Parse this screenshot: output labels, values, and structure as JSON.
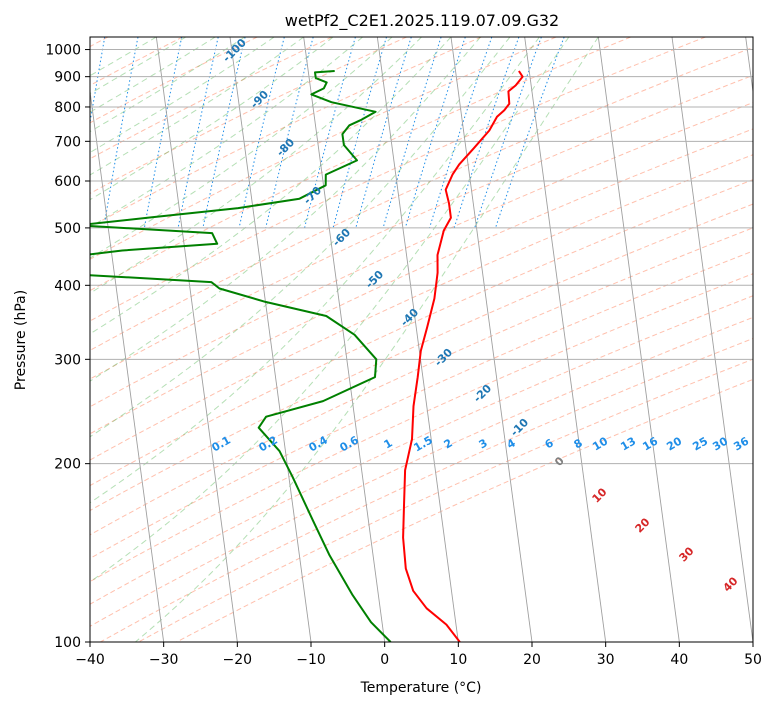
{
  "chart_data": {
    "type": "line",
    "title": "wetPf2_C2E1.2025.119.07.09.G32",
    "xlabel": "Temperature (°C)",
    "ylabel": "Pressure (hPa)",
    "xlim": [
      -40,
      50
    ],
    "ylim": [
      1050,
      100
    ],
    "y_scale": "log",
    "grid": true,
    "x_ticks": [
      "−40",
      "−30",
      "−20",
      "−10",
      "0",
      "10",
      "20",
      "30",
      "40",
      "50"
    ],
    "y_ticks": [
      "100",
      "200",
      "300",
      "400",
      "500",
      "600",
      "700",
      "800",
      "900",
      "1000"
    ],
    "series": [
      {
        "kind": "temperature",
        "color": "#ff0000",
        "points": [
          [
            28.6,
            920
          ],
          [
            29.0,
            900
          ],
          [
            27.9,
            870
          ],
          [
            26.8,
            850
          ],
          [
            26.7,
            810
          ],
          [
            25.9,
            790
          ],
          [
            24.8,
            770
          ],
          [
            23.5,
            730
          ],
          [
            21.0,
            680
          ],
          [
            18.8,
            640
          ],
          [
            17.7,
            615
          ],
          [
            16.5,
            580
          ],
          [
            16.7,
            550
          ],
          [
            16.7,
            520
          ],
          [
            15.5,
            495
          ],
          [
            14.8,
            470
          ],
          [
            14.2,
            450
          ],
          [
            13.9,
            420
          ],
          [
            13.0,
            380
          ],
          [
            11.5,
            340
          ],
          [
            10.2,
            310
          ],
          [
            9.3,
            280
          ],
          [
            8.2,
            250
          ],
          [
            7.4,
            220
          ],
          [
            5.9,
            195
          ],
          [
            5.1,
            170
          ],
          [
            4.4,
            150
          ],
          [
            4.2,
            133
          ],
          [
            4.8,
            122
          ],
          [
            6.3,
            114
          ],
          [
            8.7,
            107
          ],
          [
            10.2,
            100
          ]
        ]
      },
      {
        "kind": "dewpoint",
        "color": "#008000",
        "points": [
          [
            3.6,
            920
          ],
          [
            0.9,
            915
          ],
          [
            0.9,
            895
          ],
          [
            2.3,
            880
          ],
          [
            1.8,
            860
          ],
          [
            0.0,
            840
          ],
          [
            2.6,
            815
          ],
          [
            8.4,
            785
          ],
          [
            6.2,
            760
          ],
          [
            4.6,
            745
          ],
          [
            3.5,
            720
          ],
          [
            3.5,
            690
          ],
          [
            5.0,
            650
          ],
          [
            0.5,
            615
          ],
          [
            0.3,
            590
          ],
          [
            -3.5,
            560
          ],
          [
            -12.0,
            540
          ],
          [
            -24.5,
            520
          ],
          [
            -34.0,
            505
          ],
          [
            -16.0,
            490
          ],
          [
            -15.5,
            470
          ],
          [
            -28.5,
            458
          ],
          [
            -40.3,
            440
          ],
          [
            -39.0,
            420
          ],
          [
            -17.0,
            405
          ],
          [
            -16.0,
            395
          ],
          [
            -10.0,
            375
          ],
          [
            -2.0,
            355
          ],
          [
            1.5,
            330
          ],
          [
            4.0,
            300
          ],
          [
            3.5,
            280
          ],
          [
            -4.0,
            255
          ],
          [
            -12.0,
            240
          ],
          [
            -13.2,
            230
          ],
          [
            -10.8,
            210
          ],
          [
            -9.5,
            190
          ],
          [
            -7.5,
            160
          ],
          [
            -5.9,
            140
          ],
          [
            -3.5,
            120
          ],
          [
            -1.5,
            108
          ],
          [
            0.8,
            100
          ]
        ]
      }
    ],
    "isotherm_labels": [],
    "dry_adiabat_labels": [
      "-100",
      "-90",
      "-80",
      "-70",
      "-60",
      "-50",
      "-40",
      "-30",
      "-20",
      "-10",
      "0",
      "10",
      "20",
      "30",
      "40"
    ],
    "mixing_ratio_labels": [
      "0.1",
      "0.2",
      "0.4",
      "0.6",
      "1",
      "1.5",
      "2",
      "3",
      "4",
      "6",
      "8",
      "10",
      "13",
      "16",
      "20",
      "25",
      "30",
      "36"
    ],
    "colors": {
      "temperature": "#ff0000",
      "dewpoint": "#008000",
      "mixing_ratio": "#1f8ee8",
      "dry_adiabat": "#ff8c69",
      "moist_adiabat": "#5cb85c",
      "isotherm": "#a0a0a0",
      "cold_label": "#1f77b4",
      "warm_label": "#d62728"
    }
  }
}
